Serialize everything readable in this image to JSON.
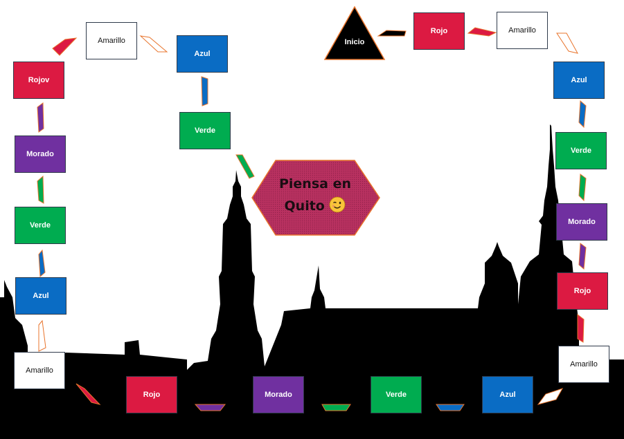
{
  "start": {
    "label": "Inicio"
  },
  "center": {
    "line1": "Piensa en",
    "line2": "Quito"
  },
  "colors": {
    "Rojo": "#dc1a42",
    "Amarillo": "#ffffff",
    "Azul": "#0a6cc4",
    "Verde": "#00ac50",
    "Morado": "#7030a0",
    "hexagon_fill": "#b83160",
    "hexagon_stroke": "#e8742c",
    "silhouette": "#000000",
    "connector_outline": "#e8742c"
  },
  "path": [
    {
      "label": "Rojo",
      "color": "Rojo"
    },
    {
      "label": "Amarillo",
      "color": "Amarillo"
    },
    {
      "label": "Azul",
      "color": "Azul"
    },
    {
      "label": "Verde",
      "color": "Verde"
    },
    {
      "label": "Morado",
      "color": "Morado"
    },
    {
      "label": "Rojo",
      "color": "Rojo"
    },
    {
      "label": "Amarillo",
      "color": "Amarillo"
    },
    {
      "label": "Azul",
      "color": "Azul"
    },
    {
      "label": "Verde",
      "color": "Verde"
    },
    {
      "label": "Morado",
      "color": "Morado"
    },
    {
      "label": "Rojo",
      "color": "Rojo"
    },
    {
      "label": "Amarillo",
      "color": "Amarillo"
    },
    {
      "label": "Azul",
      "color": "Azul"
    },
    {
      "label": "Verde",
      "color": "Verde"
    },
    {
      "label": "Morado",
      "color": "Morado"
    },
    {
      "label": "Rojov",
      "color": "Rojo"
    },
    {
      "label": "Amarillo",
      "color": "Amarillo"
    },
    {
      "label": "Azul",
      "color": "Azul"
    },
    {
      "label": "Verde",
      "color": "Verde"
    }
  ],
  "connectors": [
    "Rojo",
    "Amarillo",
    "Azul",
    "Verde",
    "Morado",
    "Rojo",
    "Amarillo",
    "Morado",
    "Verde",
    "Azul",
    "Amarillo",
    "Azul",
    "Verde",
    "Morado",
    "Rojo",
    "Amarillo",
    "Azul",
    "Verde"
  ]
}
